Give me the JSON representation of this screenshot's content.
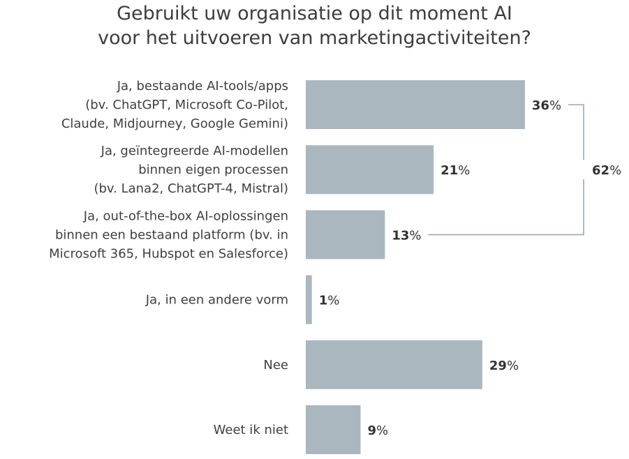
{
  "chart_data": {
    "type": "bar",
    "orientation": "horizontal",
    "title": [
      "Gebruikt uw organisatie op dit moment AI",
      "voor het uitvoeren van marketingactiviteiten?"
    ],
    "categories": [
      [
        "Ja, bestaande AI-tools/apps",
        "(bv. ChatGPT, Microsoft Co-Pilot,",
        "Claude, Midjourney, Google Gemini)"
      ],
      [
        "Ja, geïntegreerde AI-modellen",
        "binnen eigen processen",
        "(bv. Lana2, ChatGPT-4, Mistral)"
      ],
      [
        "Ja, out-of-the-box AI-oplossingen",
        "binnen een bestaand platform (bv. in",
        "Microsoft 365, Hubspot en Salesforce)"
      ],
      [
        "Ja, in een andere vorm"
      ],
      [
        "Nee"
      ],
      [
        "Weet ik niet"
      ]
    ],
    "values": [
      36,
      21,
      13,
      1,
      29,
      9
    ],
    "value_suffix": "%",
    "bar_color": "#aab7bf",
    "grid": false,
    "bracket": {
      "from_category": 0,
      "to_category": 2,
      "value": 62
    }
  }
}
